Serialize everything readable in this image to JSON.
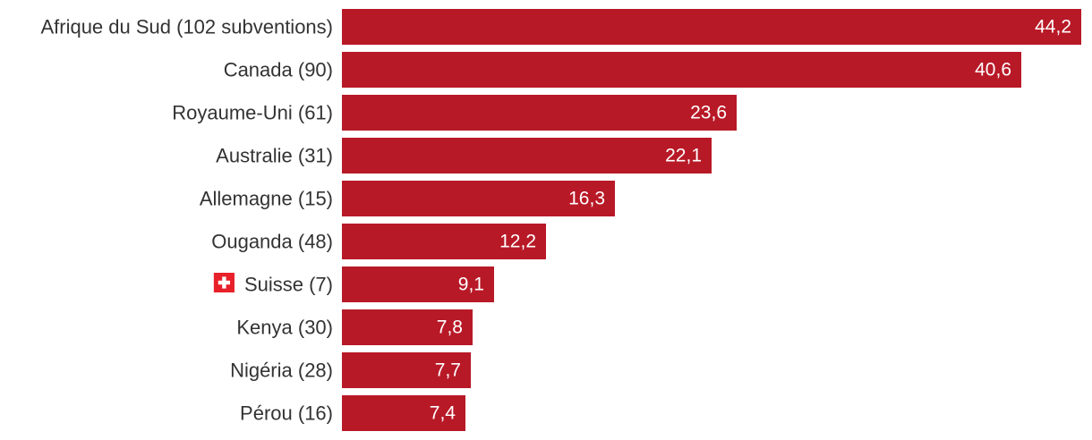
{
  "chart_data": {
    "type": "bar",
    "orientation": "horizontal",
    "title": "",
    "xlabel": "",
    "ylabel": "",
    "grid": false,
    "legend": "none",
    "xlim": [
      0,
      44.2
    ],
    "categories": [
      "Afrique du Sud (102 subventions)",
      "Canada (90)",
      "Royaume-Uni (61)",
      "Australie (31)",
      "Allemagne (15)",
      "Ouganda (48)",
      "Suisse (7)",
      "Kenya (30)",
      "Nigéria (28)",
      "Pérou (16)"
    ],
    "values": [
      44.2,
      40.6,
      23.6,
      22.1,
      16.3,
      12.2,
      9.1,
      7.8,
      7.7,
      7.4
    ],
    "value_labels": [
      "44,2",
      "40,6",
      "23,6",
      "22,1",
      "16,3",
      "12,2",
      "9,1",
      "7,8",
      "7,7",
      "7,4"
    ],
    "highlight": {
      "category": "Suisse (7)",
      "icon": "swiss-flag-icon"
    },
    "colors": {
      "bar": "#b81927",
      "bar_label": "#ffffff",
      "category_label": "#333333",
      "flag_red": "#e8202a",
      "flag_cross": "#ffffff"
    }
  }
}
